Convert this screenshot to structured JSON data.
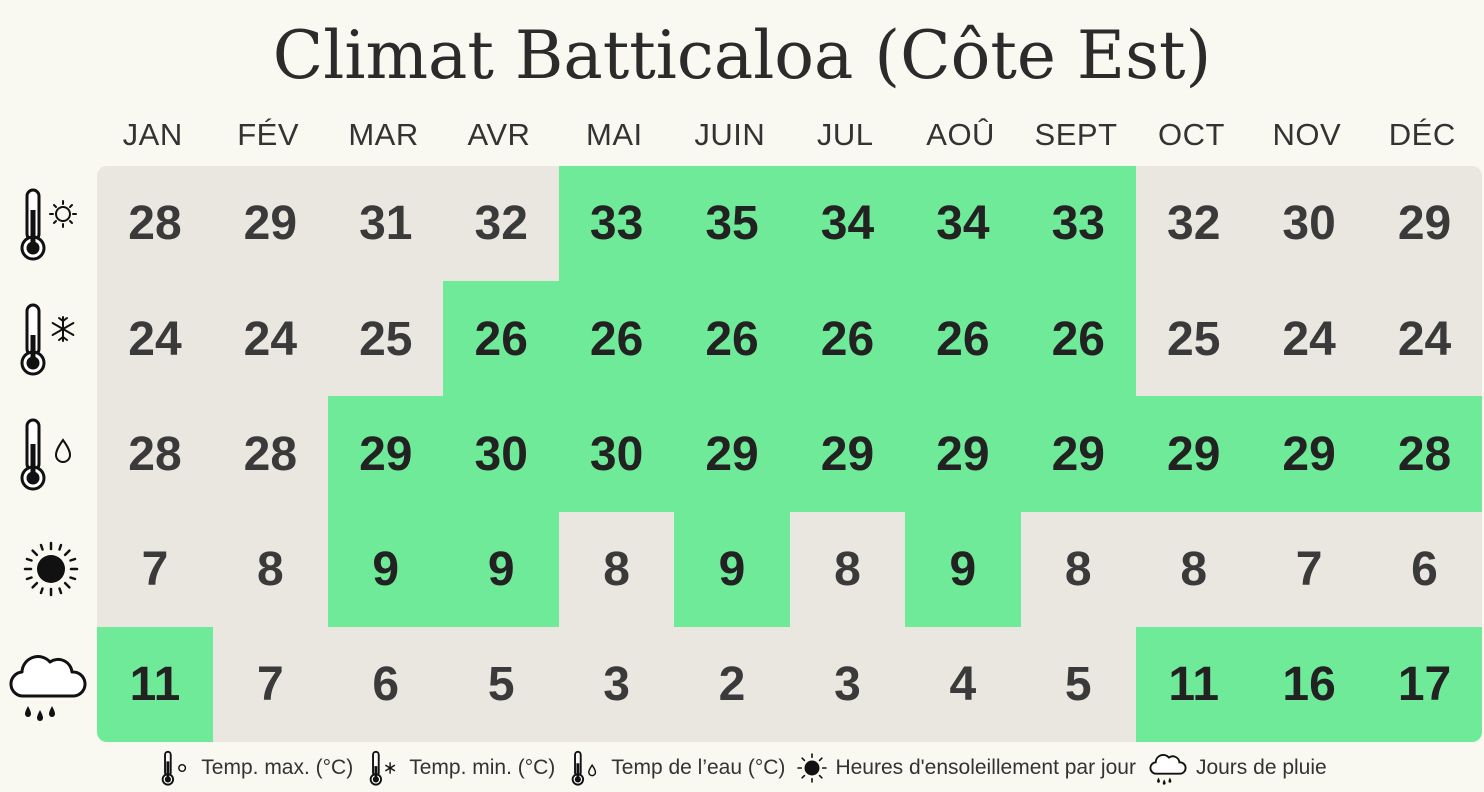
{
  "title": "Climat Batticaloa (Côte Est)",
  "colors": {
    "highlight": "#6fea98",
    "neutral": "#e9e7e0",
    "background": "#f9f8f1"
  },
  "legend": {
    "tmax": "Temp. max. (°C)",
    "tmin": "Temp. min. (°C)",
    "water": "Temp de l’eau (°C)",
    "sun": "Heures d'ensoleillement par jour",
    "rain": "Jours de pluie"
  },
  "chart_data": {
    "type": "table",
    "title": "Climat Batticaloa (Côte Est)",
    "categories": [
      "JAN",
      "FÉV",
      "MAR",
      "AVR",
      "MAI",
      "JUIN",
      "JUL",
      "AOÛ",
      "SEPT",
      "OCT",
      "NOV",
      "DÉC"
    ],
    "series": [
      {
        "name": "Temp. max. (°C)",
        "icon": "thermometer-sun-icon",
        "values": [
          28,
          29,
          31,
          32,
          33,
          35,
          34,
          34,
          33,
          32,
          30,
          29
        ],
        "highlighted": [
          false,
          false,
          false,
          false,
          true,
          true,
          true,
          true,
          true,
          false,
          false,
          false
        ]
      },
      {
        "name": "Temp. min. (°C)",
        "icon": "thermometer-snowflake-icon",
        "values": [
          24,
          24,
          25,
          26,
          26,
          26,
          26,
          26,
          26,
          25,
          24,
          24
        ],
        "highlighted": [
          false,
          false,
          false,
          true,
          true,
          true,
          true,
          true,
          true,
          false,
          false,
          false
        ]
      },
      {
        "name": "Temp de l’eau (°C)",
        "icon": "thermometer-water-drop-icon",
        "values": [
          28,
          28,
          29,
          30,
          30,
          29,
          29,
          29,
          29,
          29,
          29,
          28
        ],
        "highlighted": [
          false,
          false,
          true,
          true,
          true,
          true,
          true,
          true,
          true,
          true,
          true,
          true
        ]
      },
      {
        "name": "Heures d'ensoleillement par jour",
        "icon": "sun-icon",
        "values": [
          7,
          8,
          9,
          9,
          8,
          9,
          8,
          9,
          8,
          8,
          7,
          6
        ],
        "highlighted": [
          false,
          false,
          true,
          true,
          false,
          true,
          false,
          true,
          false,
          false,
          false,
          false
        ]
      },
      {
        "name": "Jours de pluie",
        "icon": "rain-cloud-icon",
        "values": [
          11,
          7,
          6,
          5,
          3,
          2,
          3,
          4,
          5,
          11,
          16,
          17
        ],
        "highlighted": [
          true,
          false,
          false,
          false,
          false,
          false,
          false,
          false,
          false,
          true,
          true,
          true
        ]
      }
    ]
  }
}
